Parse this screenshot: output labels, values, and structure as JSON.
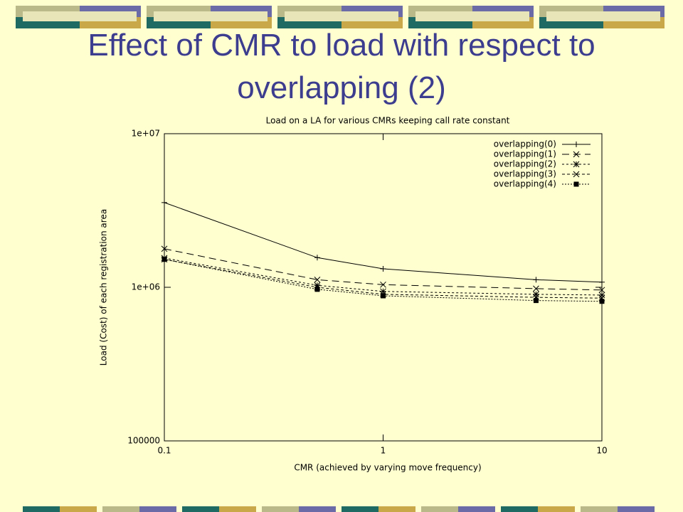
{
  "slide_title": "Effect of CMR to load with respect to overlapping (2)",
  "chart_data": {
    "type": "line",
    "title": "Load on a LA for various CMRs keeping call rate constant",
    "x_label": "CMR (achieved by varying move frequency)",
    "y_label": "Load (Cost) of each registration area",
    "x": [
      0.1,
      0.5,
      1,
      5,
      10
    ],
    "xlim": [
      0.1,
      10
    ],
    "xticks": [
      0.1,
      1,
      10
    ],
    "xscale": "log",
    "ylim": [
      100000,
      10000000
    ],
    "yscale": "log",
    "yticks": [
      100000,
      {
        "value": 1000000,
        "label": "1e+06"
      },
      {
        "value": 10000000,
        "label": "1e+07"
      }
    ],
    "legend": "upper right",
    "series": [
      {
        "name": "overlapping(0)",
        "color": "#000000",
        "dash": "none",
        "marker": "plus",
        "values": [
          3560000,
          1560000,
          1320000,
          1120000,
          1080000
        ]
      },
      {
        "name": "overlapping(1)",
        "color": "#000000",
        "dash": "10,6",
        "marker": "cross",
        "values": [
          1780000,
          1120000,
          1040000,
          980000,
          960000
        ]
      },
      {
        "name": "overlapping(2)",
        "color": "#000000",
        "dash": "3,3",
        "marker": "star",
        "values": [
          1550000,
          1030000,
          940000,
          900000,
          890000
        ]
      },
      {
        "name": "overlapping(3)",
        "color": "#000000",
        "dash": "4,3",
        "marker": "cross",
        "values": [
          1520000,
          1000000,
          900000,
          860000,
          850000
        ]
      },
      {
        "name": "overlapping(4)",
        "color": "#000000",
        "dash": "2,2",
        "marker": "square",
        "values": [
          1520000,
          970000,
          880000,
          820000,
          810000
        ]
      }
    ]
  }
}
